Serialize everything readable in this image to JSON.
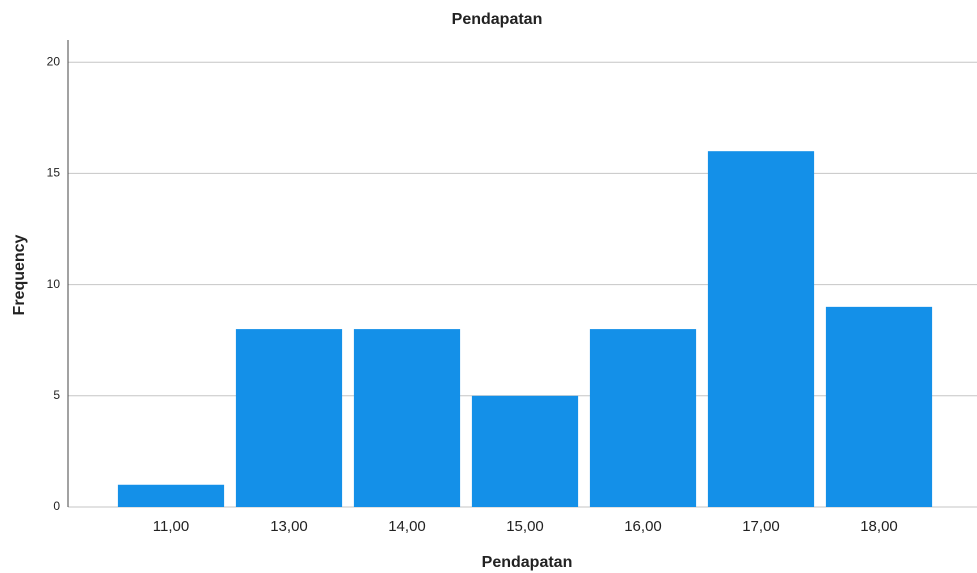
{
  "chart_data": {
    "type": "bar",
    "title": "Pendapatan",
    "x_label": "Pendapatan",
    "y_label": "Frequency",
    "categories": [
      "11,00",
      "13,00",
      "14,00",
      "15,00",
      "16,00",
      "17,00",
      "18,00"
    ],
    "values": [
      1,
      8,
      8,
      5,
      8,
      16,
      9
    ],
    "color": "#1490e8",
    "ylim": [
      0,
      21
    ],
    "yticks": [
      0,
      5,
      10,
      15,
      20
    ],
    "grid": true
  }
}
